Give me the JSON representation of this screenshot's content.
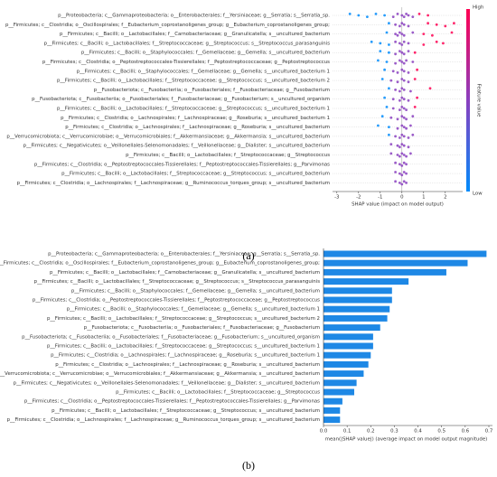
{
  "chart_data": [
    {
      "type": "beeswarm",
      "categories": [
        "p__Proteobacteria; c__Gammaproteobacteria; o__Enterobacterales; f__Yersiniaceae; g__Serratia; s__Serratia_sp.",
        "p__Firmicutes; c__Clostridia; o__Oscillospirales; f__Eubacterium_coprostanoligenes_group; g__Eubacterium_coprostanoligenes_group;",
        "p__Firmicutes; c__Bacilli; o__Lactobacillales; f__Carnobacteriaceae; g__Granulicatella; s__uncultured_bacterium",
        "p__Firmicutes; c__Bacilli; o__Lactobacillales; f__Streptococcaceae; g__Streptococcus; s__Streptococcus_parasanguinis",
        "p__Firmicutes; c__Bacilli; o__Staphylococcales; f__Gemellaceae; g__Gemella; s__uncultured_bacterium",
        "p__Firmicutes; c__Clostridia; o__Peptostreptococcales-Tissierellales; f__Peptostreptococcaceae; g__Peptostreptococcus",
        "p__Firmicutes; c__Bacilli; o__Staphylococcales; f__Gemellaceae; g__Gemella; s__uncultured_bacterium 1",
        "p__Firmicutes; c__Bacilli; o__Lactobacillales; f__Streptococcaceae; g__Streptococcus; s__uncultured_bacterium 2",
        "p__Fusobacteriota; c__Fusobacteriia; o__Fusobacteriales; f__Fusobacteriaceae; g__Fusobacterium",
        "p__Fusobacteriota; c__Fusobacteriia; o__Fusobacteriales; f__Fusobacteriaceae; g__Fusobacterium; s__uncultured_organism",
        "p__Firmicutes; c__Bacilli; o__Lactobacillales; f__Streptococcaceae; g__Streptococcus; s__uncultured_bacterium 1",
        "p__Firmicutes; c__Clostridia; o__Lachnospirales; f__Lachnospiraceae; g__Roseburia; s__uncultured_bacterium 1",
        "p__Firmicutes; c__Clostridia; o__Lachnospirales; f__Lachnospiraceae; g__Roseburia; s__uncultured_bacterium",
        "p__Verrucomicrobiota; c__Verrucomicrobiae; o__Verrucomicrobiales; f__Akkermansiaceae; g__Akkermansia; s__uncultured_bacterium",
        "p__Firmicutes; c__Negativicutes; o__Veillonellales-Selenomonadales; f__Veillonellaceae; g__Dialister; s__uncultured_bacterium",
        "p__Firmicutes; c__Bacilli; o__Lactobacillales; f__Streptococcaceae; g__Streptococcus",
        "p__Firmicutes; c__Clostridia; o__Peptostreptococcales-Tissierellales; f__Peptostreptococcales-Tissierellales; g__Parvimonas",
        "p__Firmicutes; c__Bacilli; o__Lactobacillales; f__Streptococcaceae; g__Streptococcus; s__uncultured_bacterium",
        "p__Firmicutes; c__Clostridia; o__Lachnospirales; f__Lachnospiraceae; g__Ruminococcus_torques_group; s__uncultured_bacterium"
      ],
      "values": [
        [
          -2.4,
          -2.0,
          -1.6,
          -1.2,
          -0.8,
          -0.4,
          -0.2,
          0,
          0.1,
          0.2,
          0.3,
          0.5,
          0.8,
          1.2
        ],
        [
          -0.6,
          -0.3,
          -0.1,
          0,
          0.1,
          0.3,
          1.2,
          1.6,
          2.0,
          2.4
        ],
        [
          -0.7,
          -0.3,
          -0.2,
          -0.1,
          0,
          0.1,
          0.5,
          1.0,
          1.4,
          2.3
        ],
        [
          -1.4,
          -1.0,
          -0.6,
          -0.3,
          -0.1,
          0,
          0.1,
          0.3,
          1.0,
          1.6,
          1.9
        ],
        [
          -1.0,
          -0.6,
          -0.3,
          -0.1,
          0,
          0.1,
          0.3,
          0.6
        ],
        [
          -1.1,
          -0.7,
          -0.3,
          -0.1,
          0,
          0.1,
          0.2,
          0.5
        ],
        [
          -0.8,
          -0.4,
          -0.2,
          0,
          0.1,
          0.3,
          0.7
        ],
        [
          -0.9,
          -0.5,
          -0.2,
          0,
          0.1,
          0.3,
          0.6
        ],
        [
          -0.6,
          -0.3,
          -0.1,
          0,
          0.1,
          0.4,
          1.3
        ],
        [
          -0.8,
          -0.4,
          -0.1,
          0,
          0.1,
          0.3,
          0.7
        ],
        [
          -0.7,
          -0.4,
          -0.1,
          0,
          0.1,
          0.2,
          0.6
        ],
        [
          -0.9,
          -0.5,
          -0.2,
          0,
          0.1,
          0.2,
          0.5
        ],
        [
          -1.1,
          -0.6,
          -0.2,
          0,
          0.1,
          0.2,
          0.4
        ],
        [
          -0.6,
          -0.3,
          -0.1,
          0,
          0.1,
          0.3,
          0.5
        ],
        [
          -0.5,
          -0.2,
          -0.1,
          0,
          0.1,
          0.3
        ],
        [
          -0.5,
          -0.2,
          -0.1,
          0,
          0.1,
          0.2,
          0.4
        ],
        [
          -0.3,
          -0.1,
          0,
          0.1,
          0.2
        ],
        [
          -0.3,
          -0.1,
          0,
          0.1,
          0.2
        ],
        [
          -0.3,
          -0.1,
          0,
          0.1,
          0.2
        ]
      ],
      "xlim": [
        -3.2,
        2.8
      ],
      "xticks": [
        -3,
        -2,
        -1,
        0,
        1,
        2
      ],
      "x_label": "SHAP value (impact on model output)",
      "colorbar": {
        "label": "Feature value",
        "high": "High",
        "low": "Low",
        "high_color": "#ff0052",
        "low_color": "#008bfb"
      },
      "caption": "(a)"
    },
    {
      "type": "bar",
      "categories": [
        "p__Proteobacteria; c__Gammaproteobacteria; o__Enterobacterales; f__Yersiniaceae; g__Serratia; s__Serratia_sp.",
        "p__Firmicutes; c__Clostridia; o__Oscillospirales; f__Eubacterium_coprostanoligenes_group; g__Eubacterium_coprostanoligenes_group;",
        "p__Firmicutes; c__Bacilli; o__Lactobacillales; f__Carnobacteriaceae; g__Granulicatella; s__uncultured_bacterium",
        "p__Firmicutes; c__Bacilli; o__Lactobacillales; f__Streptococcaceae; g__Streptococcus; s__Streptococcus_parasanguinis",
        "p__Firmicutes; c__Bacilli; o__Staphylococcales; f__Gemellaceae; g__Gemella; s__uncultured_bacterium",
        "p__Firmicutes; c__Clostridia; o__Peptostreptococcales-Tissierellales; f__Peptostreptococcaceae; g__Peptostreptococcus",
        "p__Firmicutes; c__Bacilli; o__Staphylococcales; f__Gemellaceae; g__Gemella; s__uncultured_bacterium 1",
        "p__Firmicutes; c__Bacilli; o__Lactobacillales; f__Streptococcaceae; g__Streptococcus; s__uncultured_bacterium 2",
        "p__Fusobacteriota; c__Fusobacteriia; o__Fusobacteriales; f__Fusobacteriaceae; g__Fusobacterium",
        "p__Fusobacteriota; c__Fusobacteriia; o__Fusobacteriales; f__Fusobacteriaceae; g__Fusobacterium; s__uncultured_organism",
        "p__Firmicutes; c__Bacilli; o__Lactobacillales; f__Streptococcaceae; g__Streptococcus; s__uncultured_bacterium 1",
        "p__Firmicutes; c__Clostridia; o__Lachnospirales; f__Lachnospiraceae; g__Roseburia; s__uncultured_bacterium 1",
        "p__Firmicutes; c__Clostridia; o__Lachnospirales; f__Lachnospiraceae; g__Roseburia; s__uncultured_bacterium",
        "p__Verrucomicrobiota; c__Verrucomicrobiae; o__Verrucomicrobiales; f__Akkermansiaceae; g__Akkermansia; s__uncultured_bacterium",
        "p__Firmicutes; c__Negativicutes; o__Veillonellales-Selenomonadales; f__Veillonellaceae; g__Dialister; s__uncultured_bacterium",
        "p__Firmicutes; c__Bacilli; o__Lactobacillales; f__Streptococcaceae; g__Streptococcus",
        "p__Firmicutes; c__Clostridia; o__Peptostreptococcales-Tissierellales; f__Peptostreptococcales-Tissierellales; g__Parvimonas",
        "p__Firmicutes; c__Bacilli; o__Lactobacillales; f__Streptococcaceae; g__Streptococcus; s__uncultured_bacterium",
        "p__Firmicutes; c__Clostridia; o__Lachnospirales; f__Lachnospiraceae; g__Ruminococcus_torques_group; s__uncultured_bacterium"
      ],
      "values": [
        0.69,
        0.61,
        0.52,
        0.36,
        0.29,
        0.29,
        0.28,
        0.27,
        0.24,
        0.21,
        0.21,
        0.2,
        0.19,
        0.17,
        0.14,
        0.13,
        0.08,
        0.07,
        0.07
      ],
      "color": "#1e88e5",
      "xlim": [
        0,
        0.7
      ],
      "xticks": [
        {
          "value": 0,
          "label": "0.0"
        },
        0.1,
        0.2,
        0.3,
        0.4,
        0.5,
        0.6,
        0.7
      ],
      "x_label": "mean(|SHAP value|) (average impact on model output magnitude)",
      "caption": "(b)"
    }
  ]
}
